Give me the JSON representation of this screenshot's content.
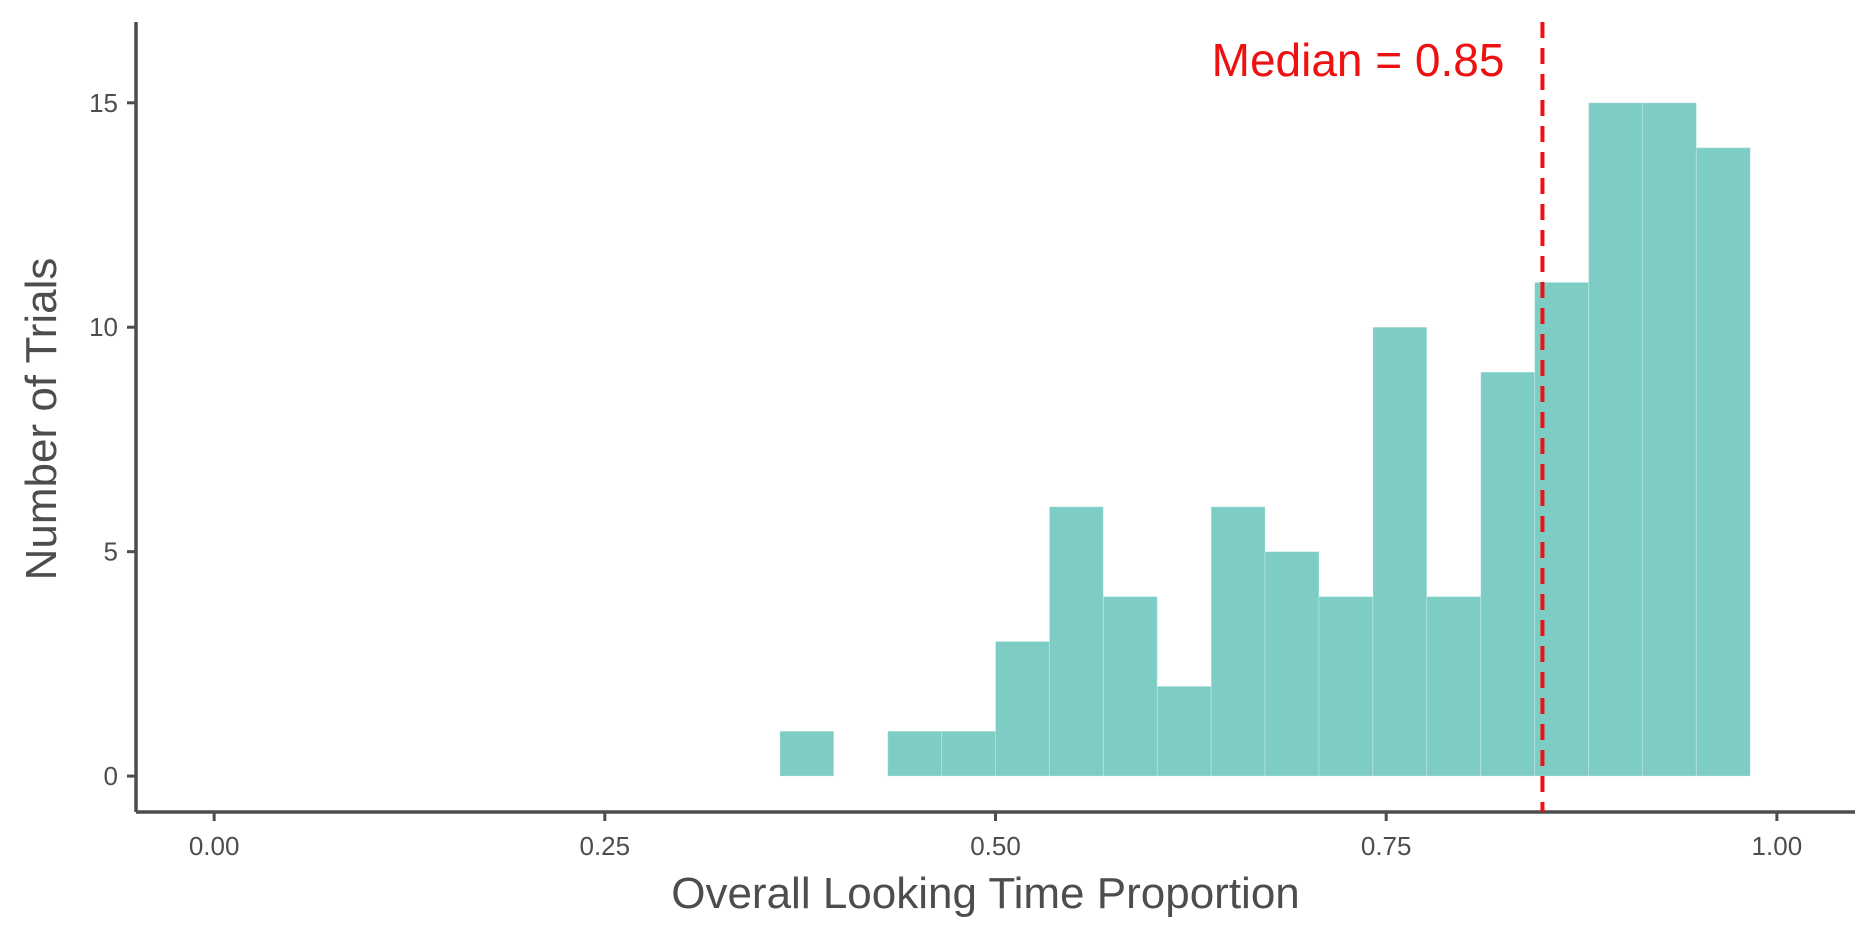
{
  "chart_data": {
    "type": "bar",
    "xlabel": "Overall Looking Time Proportion",
    "ylabel": "Number of Trials",
    "xlim": [
      -0.05,
      1.05
    ],
    "ylim": [
      -0.8,
      16.8
    ],
    "x_ticks": [
      0.0,
      0.25,
      0.5,
      0.75,
      1.0
    ],
    "x_tick_labels": [
      "0.00",
      "0.25",
      "0.50",
      "0.75",
      "1.00"
    ],
    "y_ticks": [
      0,
      5,
      10,
      15
    ],
    "y_tick_labels": [
      "0",
      "5",
      "10",
      "15"
    ],
    "bin_width": 0.0345,
    "bin_starts": [
      0.362,
      0.431,
      0.4655,
      0.5,
      0.5345,
      0.569,
      0.6035,
      0.638,
      0.6725,
      0.707,
      0.7415,
      0.776,
      0.8105,
      0.845,
      0.8795,
      0.914,
      0.9485
    ],
    "counts": [
      1,
      1,
      1,
      3,
      6,
      4,
      2,
      6,
      5,
      4,
      10,
      4,
      9,
      11,
      15,
      15,
      14
    ],
    "bar_color": "#7ECDC5",
    "median_value": 0.85,
    "median_label": "Median = 0.85",
    "median_color": "#EE1111",
    "grid": false
  }
}
